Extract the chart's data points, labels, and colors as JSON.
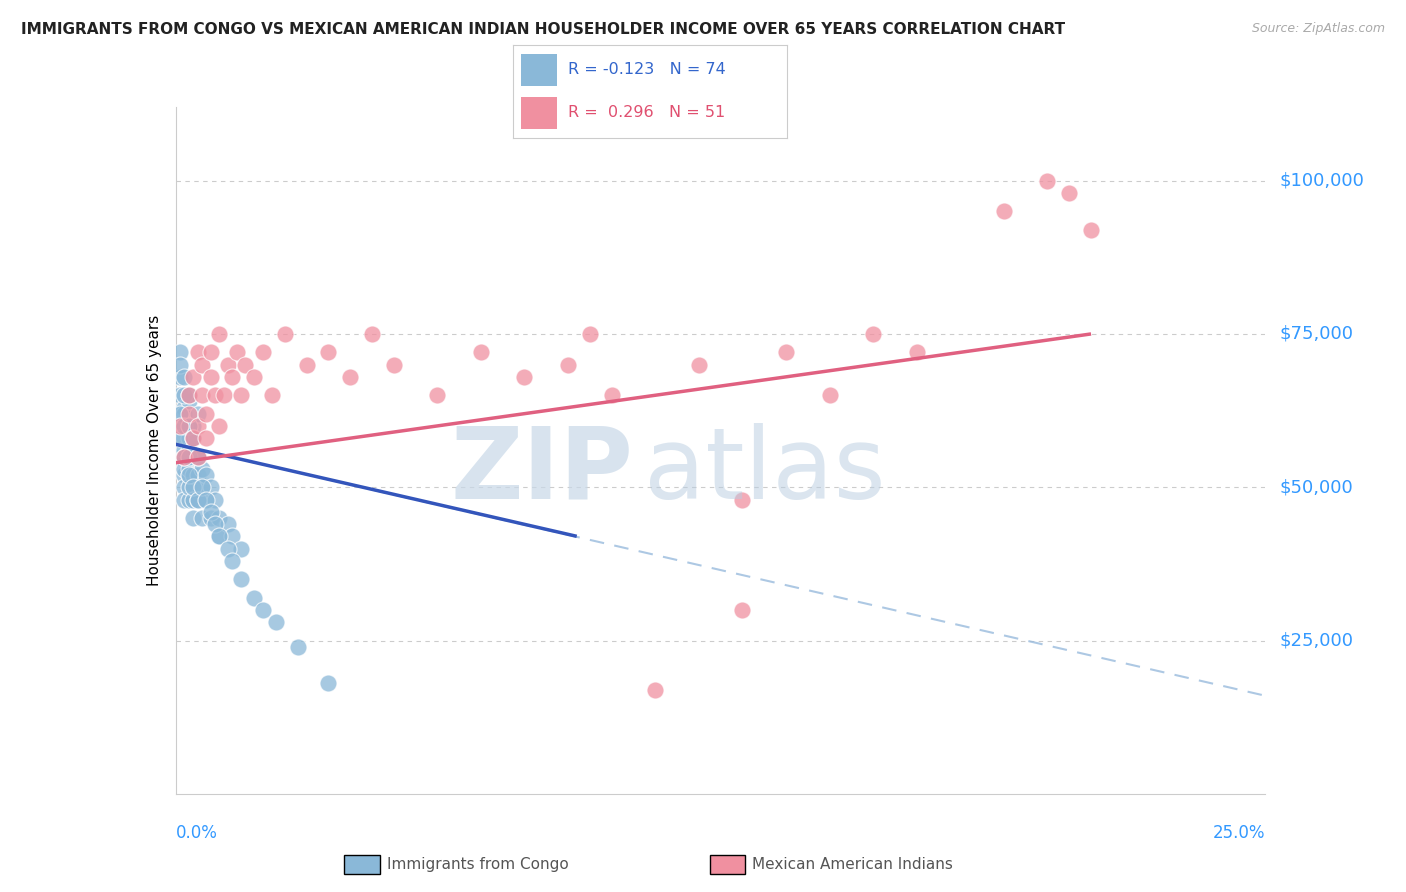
{
  "title": "IMMIGRANTS FROM CONGO VS MEXICAN AMERICAN INDIAN HOUSEHOLDER INCOME OVER 65 YEARS CORRELATION CHART",
  "source": "Source: ZipAtlas.com",
  "ylabel": "Householder Income Over 65 years",
  "ytick_labels": [
    "$25,000",
    "$50,000",
    "$75,000",
    "$100,000"
  ],
  "ytick_values": [
    25000,
    50000,
    75000,
    100000
  ],
  "xlim": [
    0.0,
    0.25
  ],
  "ylim": [
    0,
    112000
  ],
  "watermark_zip": "ZIP",
  "watermark_atlas": "atlas",
  "congo_color": "#8ab8d8",
  "mexican_color": "#f090a0",
  "congo_line_color": "#3355bb",
  "mexican_line_color": "#e06080",
  "congo_dash_color": "#99bbdd",
  "congo_R": -0.123,
  "congo_N": 74,
  "mexican_R": 0.296,
  "mexican_N": 51,
  "legend_label_congo": "Immigrants from Congo",
  "legend_label_mexican": "Mexican American Indians",
  "bg_color": "#ffffff",
  "grid_color": "#cccccc",
  "axis_label_color": "#3399ff",
  "title_fontsize": 11,
  "source_fontsize": 9,
  "ytick_fontsize": 13,
  "congo_scatter_x": [
    0.001,
    0.001,
    0.001,
    0.001,
    0.002,
    0.002,
    0.002,
    0.002,
    0.002,
    0.002,
    0.002,
    0.002,
    0.002,
    0.002,
    0.003,
    0.003,
    0.003,
    0.003,
    0.003,
    0.003,
    0.003,
    0.003,
    0.003,
    0.004,
    0.004,
    0.004,
    0.004,
    0.004,
    0.004,
    0.005,
    0.005,
    0.005,
    0.005,
    0.006,
    0.006,
    0.006,
    0.007,
    0.007,
    0.008,
    0.008,
    0.009,
    0.01,
    0.01,
    0.012,
    0.013,
    0.015,
    0.001,
    0.001,
    0.001,
    0.002,
    0.002,
    0.002,
    0.002,
    0.003,
    0.003,
    0.003,
    0.003,
    0.004,
    0.004,
    0.005,
    0.005,
    0.006,
    0.007,
    0.008,
    0.009,
    0.01,
    0.012,
    0.013,
    0.015,
    0.018,
    0.02,
    0.023,
    0.028,
    0.035
  ],
  "congo_scatter_y": [
    65000,
    68000,
    55000,
    72000,
    60000,
    63000,
    58000,
    55000,
    52000,
    50000,
    48000,
    56000,
    53000,
    62000,
    58000,
    55000,
    52000,
    48000,
    60000,
    64000,
    50000,
    53000,
    56000,
    52000,
    55000,
    48000,
    60000,
    45000,
    58000,
    52000,
    55000,
    48000,
    62000,
    50000,
    53000,
    45000,
    52000,
    48000,
    50000,
    45000,
    48000,
    45000,
    42000,
    44000,
    42000,
    40000,
    70000,
    62000,
    58000,
    68000,
    65000,
    60000,
    55000,
    65000,
    60000,
    55000,
    52000,
    58000,
    50000,
    55000,
    48000,
    50000,
    48000,
    46000,
    44000,
    42000,
    40000,
    38000,
    35000,
    32000,
    30000,
    28000,
    24000,
    18000
  ],
  "mexican_scatter_x": [
    0.001,
    0.002,
    0.003,
    0.003,
    0.004,
    0.004,
    0.005,
    0.005,
    0.005,
    0.006,
    0.006,
    0.007,
    0.007,
    0.008,
    0.008,
    0.009,
    0.01,
    0.01,
    0.011,
    0.012,
    0.013,
    0.014,
    0.015,
    0.016,
    0.018,
    0.02,
    0.022,
    0.025,
    0.03,
    0.035,
    0.04,
    0.045,
    0.05,
    0.06,
    0.07,
    0.08,
    0.09,
    0.1,
    0.12,
    0.13,
    0.14,
    0.16,
    0.19,
    0.2,
    0.205,
    0.21,
    0.13,
    0.15,
    0.17,
    0.095,
    0.11
  ],
  "mexican_scatter_y": [
    60000,
    55000,
    65000,
    62000,
    58000,
    68000,
    60000,
    72000,
    55000,
    65000,
    70000,
    62000,
    58000,
    68000,
    72000,
    65000,
    60000,
    75000,
    65000,
    70000,
    68000,
    72000,
    65000,
    70000,
    68000,
    72000,
    65000,
    75000,
    70000,
    72000,
    68000,
    75000,
    70000,
    65000,
    72000,
    68000,
    70000,
    65000,
    70000,
    48000,
    72000,
    75000,
    95000,
    100000,
    98000,
    92000,
    30000,
    65000,
    72000,
    75000,
    17000
  ]
}
